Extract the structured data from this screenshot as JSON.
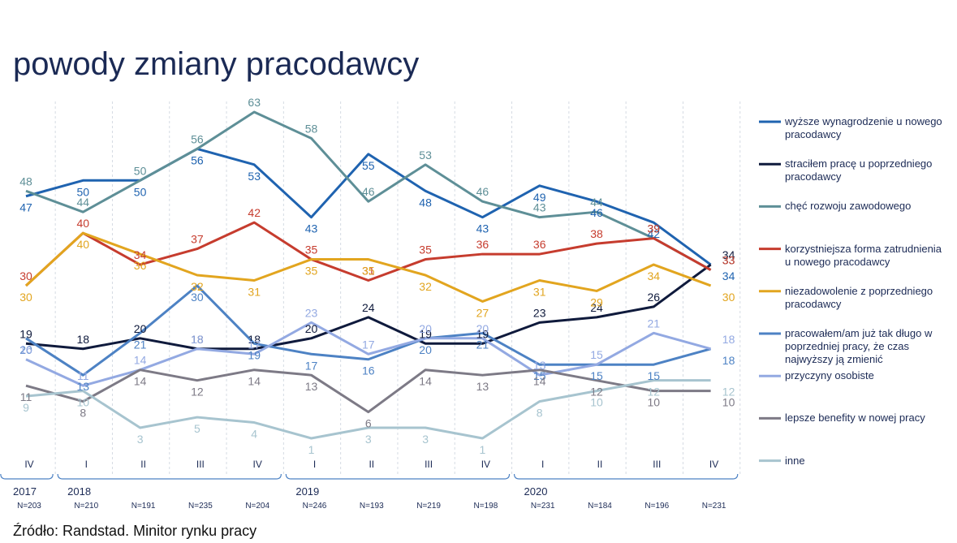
{
  "chart_data": {
    "type": "line",
    "title": "powody zmiany pracodawcy",
    "categories": [
      "IV",
      "I",
      "II",
      "III",
      "IV",
      "I",
      "II",
      "III",
      "IV",
      "I",
      "II",
      "III",
      "IV"
    ],
    "years": [
      "2017",
      "2018",
      "2019",
      "2020"
    ],
    "sample_sizes": [
      "N=203",
      "N=210",
      "N=191",
      "N=235",
      "N=204",
      "N=246",
      "N=193",
      "N=219",
      "N=198",
      "N=231",
      "N=184",
      "N=196",
      "N=231"
    ],
    "series": [
      {
        "name": "wyższe wynagrodzenie u nowego pracodawcy",
        "color": "#1f63b0",
        "values": [
          47,
          50,
          50,
          56,
          53,
          43,
          55,
          48,
          43,
          49,
          46,
          42,
          34
        ]
      },
      {
        "name": "straciłem pracę u poprzedniego pracodawcy",
        "color": "#0f1a3c",
        "values": [
          19,
          18,
          20,
          18,
          18,
          20,
          24,
          19,
          19,
          23,
          24,
          26,
          34
        ]
      },
      {
        "name": "chęć rozwoju zawodowego",
        "color": "#5e8f97",
        "values": [
          48,
          44,
          50,
          56,
          63,
          58,
          46,
          53,
          46,
          43,
          44,
          39,
          33
        ]
      },
      {
        "name": "korzystniejsza forma zatrudnienia u nowego pracodawcy",
        "color": "#c63c2e",
        "values": [
          30,
          40,
          34,
          37,
          42,
          35,
          31,
          35,
          36,
          36,
          38,
          39,
          33
        ]
      },
      {
        "name": "niezadowolenie z poprzedniego pracodawcy",
        "color": "#e2a51f",
        "values": [
          30,
          40,
          36,
          32,
          31,
          35,
          35,
          32,
          27,
          31,
          29,
          34,
          30
        ]
      },
      {
        "name": "pracowałem/am już tak długo w poprzedniej pracy, że czas najwyższy ją zmienić",
        "color": "#4d82c4",
        "values": [
          20,
          13,
          21,
          30,
          19,
          17,
          16,
          20,
          21,
          15,
          15,
          15,
          18
        ]
      },
      {
        "name": "przyczyny osobiste",
        "color": "#93a9e2",
        "values": [
          16,
          11,
          14,
          18,
          17,
          23,
          17,
          20,
          20,
          13,
          15,
          21,
          18
        ]
      },
      {
        "name": "lepsze benefity w nowej pracy",
        "color": "#7d7a86",
        "values": [
          11,
          8,
          14,
          12,
          14,
          13,
          6,
          14,
          13,
          14,
          12,
          10,
          10
        ]
      },
      {
        "name": "inne",
        "color": "#a7c4cf",
        "values": [
          9,
          10,
          3,
          5,
          4,
          1,
          3,
          3,
          1,
          8,
          10,
          12,
          12
        ]
      }
    ],
    "source": "Źródło: Randstad. Minitor rynku pracy"
  }
}
